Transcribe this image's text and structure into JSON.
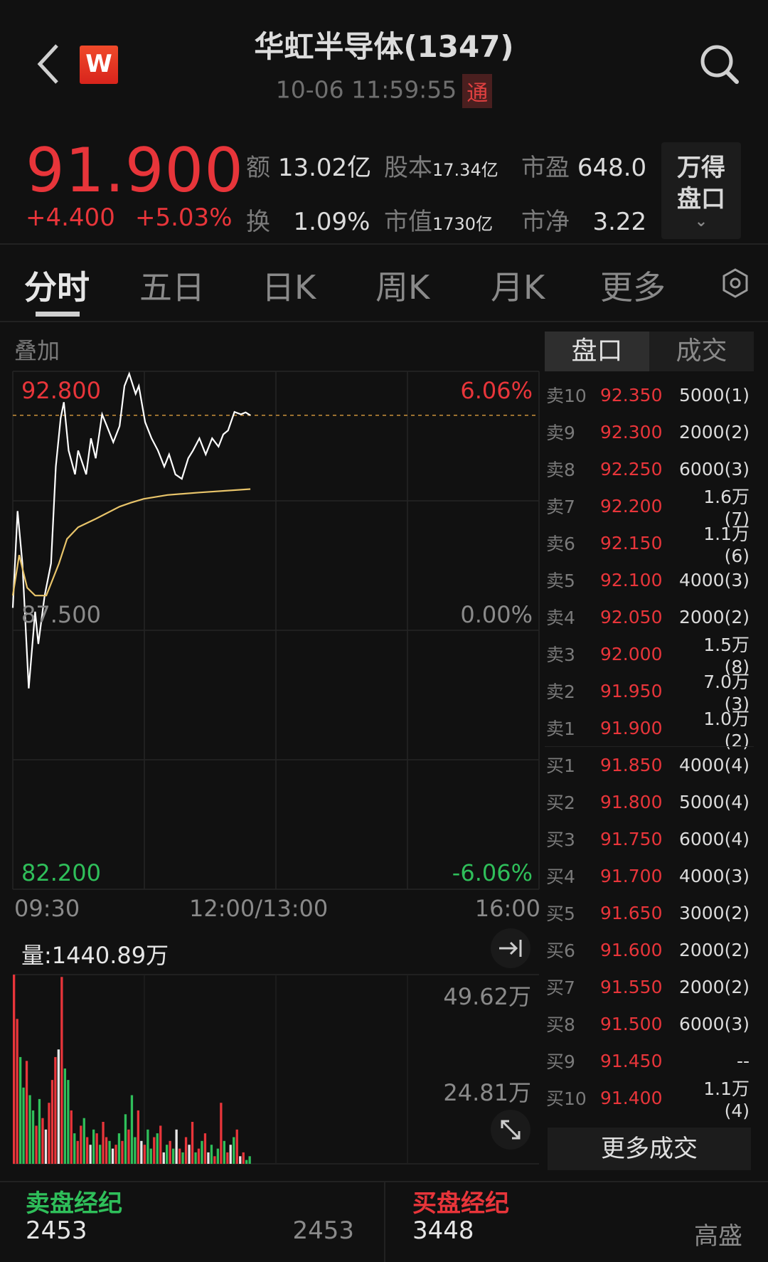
{
  "header": {
    "title": "华虹半导体(1347)",
    "datetime": "10-06 11:59:55",
    "connect_badge": "通",
    "logo_letter": "W",
    "icons": [
      "back-arrow-icon",
      "wind-logo-icon",
      "search-icon"
    ]
  },
  "quote": {
    "price": "91.900",
    "change": "+4.400",
    "change_pct": "+5.03%",
    "stats": [
      {
        "label": "额",
        "value": "13.02亿"
      },
      {
        "label": "股本",
        "value": "17.34亿"
      },
      {
        "label": "市盈",
        "value": "648.0"
      },
      {
        "label": "换",
        "value": "1.09%"
      },
      {
        "label": "市值",
        "value": "1730亿"
      },
      {
        "label": "市净",
        "value": "3.22"
      }
    ],
    "wind_button": {
      "line1": "万得",
      "line2": "盘口"
    }
  },
  "tabs": [
    "分时",
    "五日",
    "日K",
    "周K",
    "月K",
    "更多"
  ],
  "active_tab": "分时",
  "overlay_label": "叠加",
  "side_toggle": {
    "options": [
      "盘口",
      "成交"
    ],
    "active": "盘口"
  },
  "colors": {
    "up": "#e8353a",
    "down": "#2fbf5a",
    "price_line": "#ffffff",
    "avg_line": "#e8c46a",
    "background": "#111111"
  },
  "chart_data": [
    {
      "type": "line",
      "y_left_ticks": [
        "92.800",
        "87.500",
        "82.200"
      ],
      "y_right_ticks": [
        "6.06%",
        "0.00%",
        "-6.06%"
      ],
      "ylim": [
        82.2,
        92.8
      ],
      "prev_close": 87.5,
      "x_ticks": [
        "09:30",
        "12:00/13:00",
        "16:00"
      ],
      "current_price_line": 91.9,
      "series": [
        {
          "x": [
            "09:30",
            "09:33",
            "09:36",
            "09:40",
            "09:44",
            "09:46",
            "09:50",
            "09:54",
            "09:57",
            "10:00",
            "10:02",
            "10:05",
            "10:09",
            "10:11",
            "10:16",
            "10:19",
            "10:22",
            "10:26",
            "10:29",
            "10:33",
            "10:37",
            "10:40",
            "10:43",
            "10:47",
            "10:49",
            "10:53",
            "10:57",
            "11:01",
            "11:05",
            "11:08",
            "11:12",
            "11:16",
            "11:20",
            "11:23",
            "11:27",
            "11:31",
            "11:35",
            "11:39",
            "11:42",
            "11:45",
            "11:49",
            "11:53",
            "11:56",
            "11:59"
          ],
          "y": [
            87.96,
            89.94,
            88.87,
            86.31,
            87.88,
            87.22,
            88.21,
            88.87,
            90.85,
            91.84,
            92.17,
            91.18,
            90.69,
            91.18,
            90.69,
            91.43,
            91.02,
            91.92,
            91.68,
            91.35,
            91.68,
            92.5,
            92.75,
            92.34,
            92.5,
            91.76,
            91.43,
            91.18,
            90.85,
            91.1,
            90.69,
            90.6,
            91.02,
            91.18,
            91.43,
            91.1,
            91.43,
            91.26,
            91.51,
            91.59,
            91.97,
            91.92,
            91.96,
            91.9
          ]
        },
        {
          "x": [
            "09:30",
            "09:34",
            "09:39",
            "09:44",
            "09:51",
            "09:59",
            "10:04",
            "10:11",
            "10:22",
            "10:37",
            "10:44",
            "10:52",
            "11:07",
            "11:27",
            "11:59"
          ],
          "y": [
            88.21,
            89.04,
            88.37,
            88.21,
            88.21,
            88.87,
            89.37,
            89.61,
            89.78,
            90.03,
            90.11,
            90.19,
            90.27,
            90.32,
            90.39
          ]
        }
      ]
    },
    {
      "type": "bar",
      "title": "量:1440.89万",
      "y_ticks": [
        "49.62万",
        "24.81万"
      ],
      "ylim": [
        0,
        49.62
      ],
      "values": [
        49.6,
        38,
        28,
        20,
        27,
        18,
        14,
        10,
        17,
        12,
        9,
        16,
        22,
        28,
        30,
        49,
        25,
        22,
        14,
        8,
        6,
        10,
        12,
        7,
        5,
        9,
        8,
        5,
        11,
        7,
        6,
        4,
        5,
        8,
        6,
        13,
        9,
        18,
        7,
        14,
        6,
        5,
        9,
        4,
        7,
        8,
        10,
        3,
        5,
        6,
        4,
        9,
        4,
        3,
        7,
        5,
        11,
        3,
        4,
        6,
        8,
        3,
        5,
        2,
        4,
        16,
        6,
        3,
        5,
        7,
        9,
        2,
        3,
        1,
        2
      ],
      "bar_colors": [
        "r",
        "r",
        "g",
        "g",
        "r",
        "g",
        "g",
        "r",
        "g",
        "r",
        "w",
        "r",
        "r",
        "r",
        "w",
        "r",
        "g",
        "g",
        "r",
        "g",
        "r",
        "r",
        "g",
        "r",
        "w",
        "g",
        "r",
        "g",
        "r",
        "r",
        "g",
        "w",
        "r",
        "g",
        "r",
        "g",
        "r",
        "g",
        "g",
        "r",
        "w",
        "r",
        "g",
        "g",
        "r",
        "g",
        "r",
        "w",
        "g",
        "r",
        "g",
        "w",
        "r",
        "g",
        "r",
        "w",
        "r",
        "g",
        "r",
        "g",
        "r",
        "w",
        "g",
        "r",
        "g",
        "r",
        "g",
        "r",
        "w",
        "g",
        "r",
        "w",
        "r",
        "g",
        "g"
      ]
    }
  ],
  "orderbook": [
    {
      "label": "卖10",
      "price": "92.350",
      "qty": "5000(1)"
    },
    {
      "label": "卖9",
      "price": "92.300",
      "qty": "2000(2)"
    },
    {
      "label": "卖8",
      "price": "92.250",
      "qty": "6000(3)"
    },
    {
      "label": "卖7",
      "price": "92.200",
      "qty": "1.6万(7)"
    },
    {
      "label": "卖6",
      "price": "92.150",
      "qty": "1.1万(6)"
    },
    {
      "label": "卖5",
      "price": "92.100",
      "qty": "4000(3)"
    },
    {
      "label": "卖4",
      "price": "92.050",
      "qty": "2000(2)"
    },
    {
      "label": "卖3",
      "price": "92.000",
      "qty": "1.5万(8)"
    },
    {
      "label": "卖2",
      "price": "91.950",
      "qty": "7.0万(3)"
    },
    {
      "label": "卖1",
      "price": "91.900",
      "qty": "1.0万(2)"
    },
    {
      "label": "买1",
      "price": "91.850",
      "qty": "4000(4)"
    },
    {
      "label": "买2",
      "price": "91.800",
      "qty": "5000(4)"
    },
    {
      "label": "买3",
      "price": "91.750",
      "qty": "6000(4)"
    },
    {
      "label": "买4",
      "price": "91.700",
      "qty": "4000(3)"
    },
    {
      "label": "买5",
      "price": "91.650",
      "qty": "3000(2)"
    },
    {
      "label": "买6",
      "price": "91.600",
      "qty": "2000(2)"
    },
    {
      "label": "买7",
      "price": "91.550",
      "qty": "2000(2)"
    },
    {
      "label": "买8",
      "price": "91.500",
      "qty": "6000(3)"
    },
    {
      "label": "买9",
      "price": "91.450",
      "qty": "--"
    },
    {
      "label": "买10",
      "price": "91.400",
      "qty": "1.1万(4)"
    }
  ],
  "more_trades_label": "更多成交",
  "brokers": {
    "sell": {
      "title": "卖盘经纪",
      "code": "2453",
      "name": "2453"
    },
    "buy": {
      "title": "买盘经纪",
      "code": "3448",
      "name": "高盛"
    }
  }
}
